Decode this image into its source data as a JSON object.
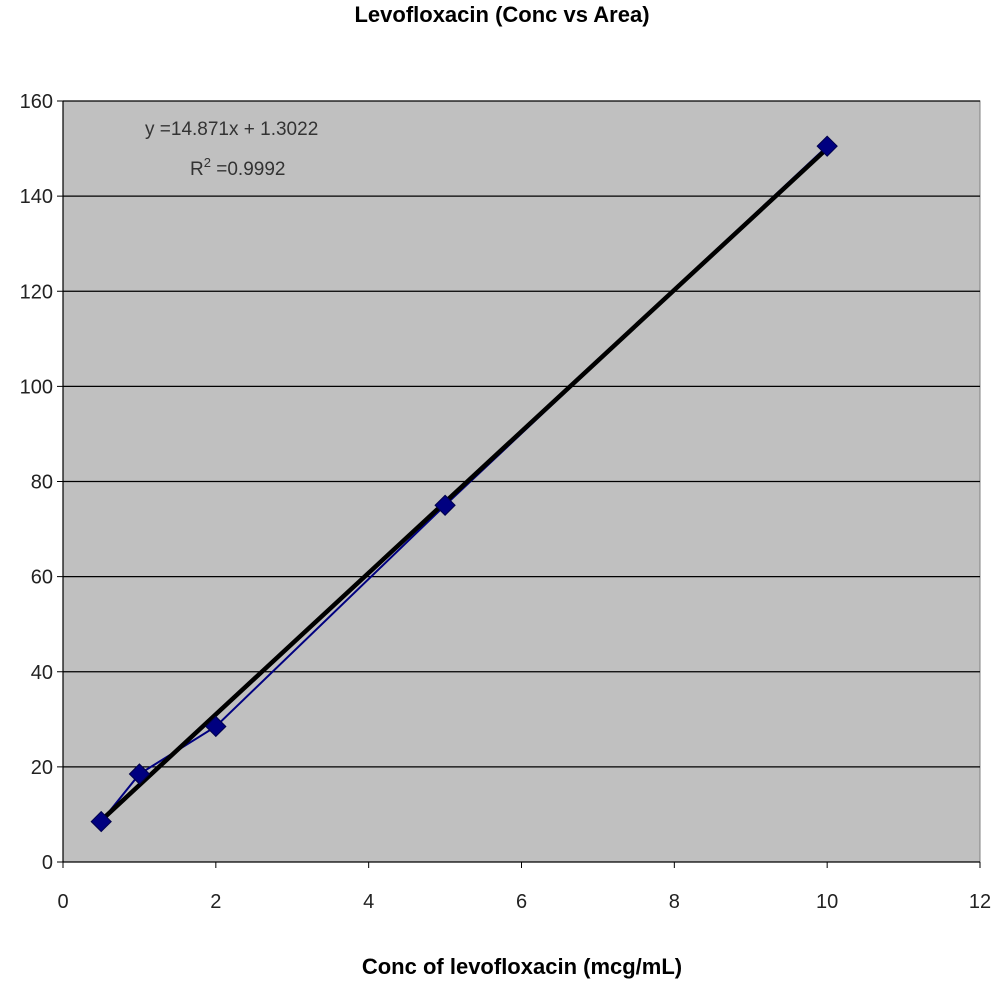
{
  "chart_data": {
    "type": "scatter",
    "title": "Levofloxacin (Conc vs Area)",
    "xlabel": "Conc of levofloxacin (mcg/mL)",
    "ylabel": "",
    "xlim": [
      0,
      12
    ],
    "ylim": [
      0,
      160
    ],
    "x_ticks": [
      0,
      2,
      4,
      6,
      8,
      10,
      12
    ],
    "y_ticks": [
      0,
      20,
      40,
      60,
      80,
      100,
      120,
      140,
      160
    ],
    "grid": "horizontal",
    "legend": "none",
    "series": [
      {
        "x": [
          0.5,
          1,
          2,
          5,
          10
        ],
        "y": [
          8.5,
          18.5,
          28.5,
          75,
          150.5
        ],
        "marker": "diamond",
        "connected": true
      }
    ],
    "trendline": {
      "slope": 14.871,
      "intercept": 1.3022,
      "x_range": [
        0.5,
        10
      ],
      "equation_label": "y =14.871x + 1.3022",
      "r2_prefix": "R",
      "r2_sup": "2",
      "r2_value": " =0.9992"
    },
    "colors": {
      "plot_background": "#c0c0c0",
      "grid": "#000000",
      "series": "#000080",
      "trendline": "#000000"
    }
  }
}
